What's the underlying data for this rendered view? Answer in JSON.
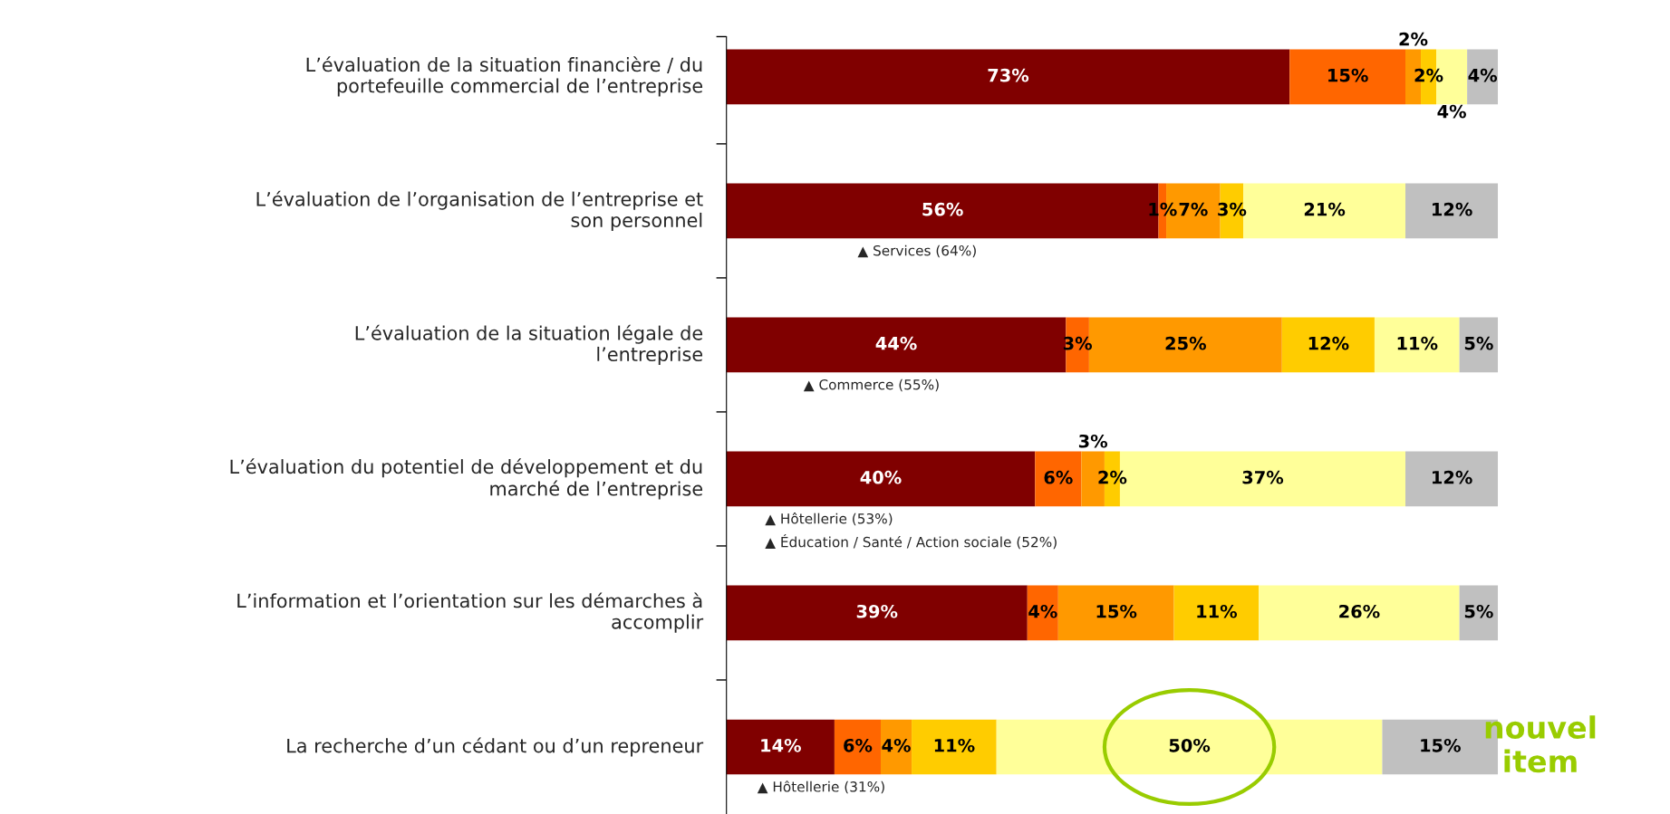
{
  "chart_data": {
    "type": "bar",
    "orientation": "horizontal",
    "stacked": true,
    "xlim": [
      0,
      100
    ],
    "tick_labels": "y",
    "grid": false,
    "categories": [
      "L’évaluation de la situation financière / du portefeuille commercial de l’entreprise",
      "L’évaluation de l’organisation de l’entreprise et son personnel",
      "L’évaluation de la situation légale de l’entreprise",
      "L’évaluation du potentiel de développement et du marché de l’entreprise",
      "L’information et l’orientation sur les démarches à accomplir",
      "La recherche d’un cédant ou d’un repreneur"
    ],
    "series": [
      {
        "color": "#800000",
        "values": [
          73,
          56,
          44,
          40,
          39,
          14
        ],
        "value_labels": [
          "73%",
          "56%",
          "44%",
          "40%",
          "39%",
          "14%"
        ]
      },
      {
        "color": "#ff6600",
        "values": [
          15,
          1,
          3,
          6,
          4,
          6
        ],
        "value_labels": [
          "15%",
          "1%",
          "3%",
          "6%",
          "4%",
          "6%"
        ]
      },
      {
        "color": "#ff9900",
        "values": [
          2,
          7,
          25,
          3,
          15,
          4
        ],
        "value_labels": [
          "2%",
          "7%",
          "25%",
          "3%",
          "15%",
          "4%"
        ]
      },
      {
        "color": "#ffcc00",
        "values": [
          2,
          3,
          12,
          2,
          11,
          11
        ],
        "value_labels": [
          "2%",
          "3%",
          "12%",
          "2%",
          "11%",
          "11%"
        ]
      },
      {
        "color": "#ffff99",
        "values": [
          4,
          21,
          11,
          37,
          26,
          50
        ],
        "value_labels": [
          "4%",
          "21%",
          "11%",
          "37%",
          "26%",
          "50%"
        ]
      },
      {
        "color": "#c0c0c0",
        "values": [
          4,
          12,
          5,
          12,
          5,
          15
        ],
        "value_labels": [
          "4%",
          "12%",
          "5%",
          "12%",
          "5%",
          "15%"
        ]
      }
    ],
    "annotations": [
      "▲ Services (64%)",
      "▲ Commerce (55%)",
      "▲ Hôtellerie (53%)",
      "▲ Éducation / Santé / Action sociale (52%)",
      "▲ Hôtellerie (31%)",
      "nouvel item"
    ]
  }
}
